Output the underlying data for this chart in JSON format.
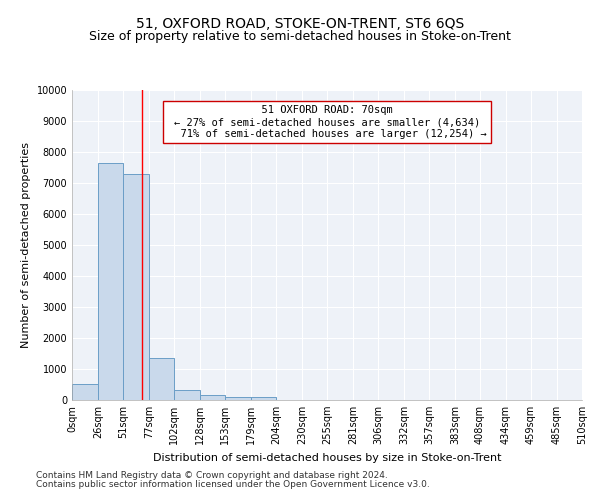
{
  "title": "51, OXFORD ROAD, STOKE-ON-TRENT, ST6 6QS",
  "subtitle": "Size of property relative to semi-detached houses in Stoke-on-Trent",
  "xlabel": "Distribution of semi-detached houses by size in Stoke-on-Trent",
  "ylabel": "Number of semi-detached properties",
  "footnote1": "Contains HM Land Registry data © Crown copyright and database right 2024.",
  "footnote2": "Contains public sector information licensed under the Open Government Licence v3.0.",
  "property_size": 70,
  "property_label": "51 OXFORD ROAD: 70sqm",
  "pct_smaller": 27,
  "pct_larger": 71,
  "n_smaller": 4634,
  "n_larger": 12254,
  "bin_edges": [
    0,
    26,
    51,
    77,
    102,
    128,
    153,
    179,
    204,
    230,
    255,
    281,
    306,
    332,
    357,
    383,
    408,
    434,
    459,
    485,
    510
  ],
  "bar_heights": [
    530,
    7650,
    7280,
    1350,
    310,
    155,
    105,
    90,
    0,
    0,
    0,
    0,
    0,
    0,
    0,
    0,
    0,
    0,
    0,
    0
  ],
  "bar_color": "#c9d9eb",
  "bar_edge_color": "#6b9ec7",
  "red_line_x": 70,
  "ylim": [
    0,
    10000
  ],
  "yticks": [
    0,
    1000,
    2000,
    3000,
    4000,
    5000,
    6000,
    7000,
    8000,
    9000,
    10000
  ],
  "bg_color": "#eef2f8",
  "grid_color": "#ffffff",
  "title_fontsize": 10,
  "subtitle_fontsize": 9,
  "axis_label_fontsize": 8,
  "tick_fontsize": 7,
  "annotation_fontsize": 7.5,
  "footnote_fontsize": 6.5
}
